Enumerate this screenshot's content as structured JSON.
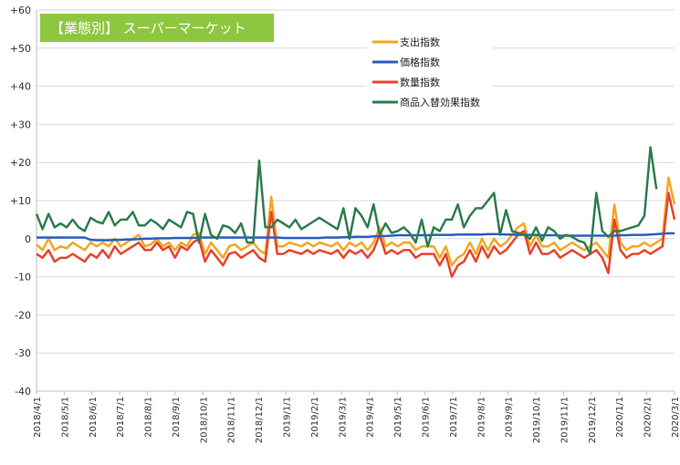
{
  "chart_data": {
    "type": "line",
    "title": "【業態別】 スーパーマーケット",
    "title_bg": "#8dc73f",
    "ylim": [
      -40,
      60
    ],
    "y_ticks": [
      -40,
      -30,
      -20,
      -10,
      0,
      10,
      20,
      30,
      40,
      50,
      60
    ],
    "y_tick_labels": [
      "-40",
      "-30",
      "-20",
      "-10",
      "0",
      "+10",
      "+20",
      "+30",
      "+40",
      "+50",
      "+60"
    ],
    "x_tick_labels": [
      "2018/4/1",
      "2018/5/1",
      "2018/6/1",
      "2018/7/1",
      "2018/8/1",
      "2018/9/1",
      "2018/10/1",
      "2018/11/1",
      "2018/12/1",
      "2019/1/1",
      "2019/2/1",
      "2019/3/1",
      "2019/4/1",
      "2019/5/1",
      "2019/6/1",
      "2019/7/1",
      "2019/8/1",
      "2019/9/1",
      "2019/10/1",
      "2019/11/1",
      "2019/12/1",
      "2020/1/1",
      "2020/2/1",
      "2020/3/1"
    ],
    "grid": "horizontal",
    "legend_position": "top-right",
    "series": [
      {
        "name": "支出指数",
        "color": "#f5a623",
        "values": [
          -1.5,
          -3,
          0,
          -3,
          -2,
          -2.5,
          -1,
          -2,
          -3,
          -1,
          -2,
          -1,
          -2,
          0,
          -2,
          -1,
          0,
          1,
          -2,
          -1.5,
          0,
          -2,
          -1,
          -3,
          -1,
          -2,
          1,
          1.5,
          -4,
          -1,
          -3,
          -5,
          -2,
          -1.5,
          -3,
          -2,
          -1,
          -3,
          -4,
          11,
          -2,
          -2,
          -1,
          -1.5,
          -2,
          -1,
          -2,
          -1,
          -1.5,
          -2,
          -1,
          -3,
          -1,
          -2,
          -1,
          -3,
          -1,
          3,
          -2,
          -1,
          -2,
          -1,
          -1,
          -3,
          -2,
          -2,
          -2,
          -5,
          -2,
          -7,
          -5,
          -4,
          -1,
          -4,
          0,
          -3,
          0,
          -2,
          -1,
          1,
          3,
          4,
          -2,
          1,
          -2,
          -2,
          -1,
          -3,
          -2,
          -1,
          -2,
          -3,
          -2,
          -1,
          -3,
          -5,
          9,
          -1,
          -3,
          -2,
          -2,
          -1,
          -2,
          -1,
          0,
          16,
          9
        ]
      },
      {
        "name": "価格指数",
        "color": "#2b5fc0",
        "values": [
          0.3,
          0.3,
          0.3,
          0.3,
          0.3,
          0.3,
          0.3,
          0.3,
          0.3,
          -0.3,
          -0.4,
          -0.4,
          -0.4,
          -0.3,
          -0.3,
          -0.2,
          -0.2,
          -0.1,
          0,
          0,
          0.1,
          0.1,
          0.1,
          0.2,
          0.2,
          0.2,
          0.2,
          0.3,
          0.3,
          0.3,
          0.3,
          0.3,
          0.3,
          0.3,
          0.3,
          0.3,
          0.3,
          0.3,
          0.3,
          0.3,
          0.3,
          0.2,
          0.2,
          0.2,
          0.2,
          0.2,
          0.2,
          0.2,
          0.3,
          0.3,
          0.3,
          0.4,
          0.4,
          0.5,
          0.5,
          0.5,
          0.6,
          0.7,
          0.7,
          0.8,
          0.9,
          0.9,
          0.9,
          0.9,
          0.9,
          0.9,
          1,
          1,
          1,
          1,
          1.1,
          1.1,
          1.1,
          1.1,
          1.1,
          1.2,
          1.2,
          1.2,
          1.1,
          1.1,
          1,
          1,
          1,
          1,
          0.9,
          0.9,
          0.9,
          0.8,
          0.8,
          0.8,
          0.8,
          0.8,
          0.8,
          0.8,
          0.8,
          0.8,
          0.8,
          0.9,
          0.9,
          1,
          1,
          1,
          1.1,
          1.2,
          1.3,
          1.4,
          1.4
        ]
      },
      {
        "name": "数量指数",
        "color": "#e8432c",
        "values": [
          -4,
          -5,
          -3,
          -6,
          -5,
          -5,
          -4,
          -5,
          -6,
          -4,
          -5,
          -3,
          -5,
          -2,
          -4,
          -3,
          -2,
          -1,
          -3,
          -3,
          -1,
          -3,
          -2,
          -5,
          -2,
          -3,
          -1,
          0,
          -6,
          -3,
          -5,
          -7,
          -4,
          -3.5,
          -5,
          -4,
          -3,
          -5,
          -6,
          7,
          -4,
          -4,
          -3,
          -3.5,
          -4,
          -3,
          -4,
          -3,
          -3.5,
          -4,
          -3,
          -5,
          -3,
          -4,
          -3,
          -5,
          -3,
          1,
          -4,
          -3,
          -4,
          -3,
          -3,
          -5,
          -4,
          -4,
          -4,
          -7,
          -4,
          -10,
          -7,
          -6,
          -3,
          -6,
          -2,
          -5,
          -2,
          -4,
          -3,
          -1,
          1,
          2,
          -4,
          -1,
          -4,
          -4,
          -3,
          -5,
          -4,
          -3,
          -4,
          -5,
          -4,
          -3,
          -5,
          -9,
          5,
          -3,
          -5,
          -4,
          -4,
          -3,
          -4,
          -3,
          -2,
          12,
          5
        ]
      },
      {
        "name": "商品入替効果指数",
        "color": "#2e7d4f",
        "values": [
          6.5,
          2.5,
          6.5,
          3,
          4,
          3,
          5,
          3,
          2,
          5.5,
          4.5,
          4,
          7,
          3.5,
          5,
          5,
          7,
          3.5,
          3.5,
          5,
          4,
          2.5,
          5,
          4,
          3,
          7,
          6.5,
          -1,
          6.5,
          1,
          0,
          3.5,
          3,
          1.5,
          4,
          -1,
          -1,
          20.5,
          3,
          3,
          5,
          4,
          3,
          5,
          2.5,
          3.5,
          4.5,
          5.5,
          4.5,
          3.5,
          2.5,
          8,
          0,
          8,
          6,
          3,
          9,
          1,
          4,
          1.5,
          2,
          3,
          1.5,
          -1,
          5,
          -2,
          3,
          2,
          5,
          5,
          9,
          3,
          6,
          8,
          8,
          10,
          12,
          1,
          7.5,
          2,
          1.5,
          1,
          0,
          3,
          -0.5,
          3,
          2,
          0,
          1,
          0.5,
          -0.5,
          -1,
          -4,
          12,
          2,
          0.5,
          2,
          2,
          2.5,
          3,
          3.5,
          6,
          24,
          13
        ]
      }
    ]
  }
}
